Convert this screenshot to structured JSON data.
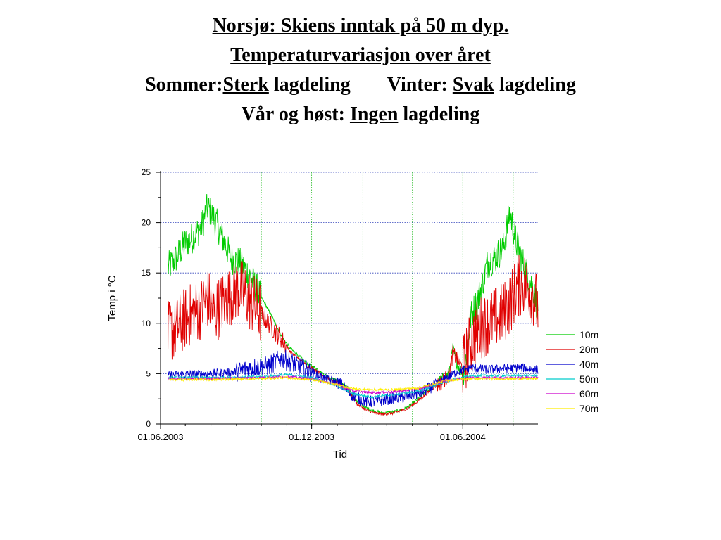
{
  "slide": {
    "line1": "Norsjø: Skiens inntak på 50 m dyp.",
    "line2": "Temperaturvariasjon over året",
    "line3_a": "Sommer:",
    "line3_b": "Sterk",
    "line3_c": " lagdeling",
    "line3_d": "Vinter: ",
    "line3_e": "Svak",
    "line3_f": " lagdeling",
    "line4_a": "Vår og høst: ",
    "line4_b": "Ingen",
    "line4_c": " lagdeling"
  },
  "chart_data": {
    "type": "line",
    "title": "",
    "xlabel": "Tid",
    "ylabel": "Temp i °C",
    "xlim": [
      "2003-06-01",
      "2004-08-31"
    ],
    "ylim": [
      0,
      25
    ],
    "yticks": [
      "0",
      "5",
      "10",
      "15",
      "20",
      "25"
    ],
    "xticks": [
      "01.06.2003",
      "01.12.2003",
      "01.06.2004"
    ],
    "grid": true,
    "legend_position": "right",
    "series": [
      {
        "name": "10m",
        "color": "#00cc00",
        "points": [
          [
            "2003-06-10",
            15.5
          ],
          [
            "2003-06-20",
            16.5
          ],
          [
            "2003-07-01",
            18.0
          ],
          [
            "2003-07-10",
            18.5
          ],
          [
            "2003-07-20",
            19.5
          ],
          [
            "2003-07-28",
            21.5
          ],
          [
            "2003-08-05",
            20.5
          ],
          [
            "2003-08-15",
            18.5
          ],
          [
            "2003-08-25",
            16.5
          ],
          [
            "2003-09-05",
            16.0
          ],
          [
            "2003-09-15",
            15.0
          ],
          [
            "2003-09-25",
            13.5
          ],
          [
            "2003-10-05",
            12.0
          ],
          [
            "2003-10-15",
            10.5
          ],
          [
            "2003-10-25",
            8.8
          ],
          [
            "2003-11-05",
            7.5
          ],
          [
            "2003-11-15",
            6.8
          ],
          [
            "2003-11-25",
            6.0
          ],
          [
            "2003-12-05",
            5.6
          ],
          [
            "2003-12-15",
            5.0
          ],
          [
            "2003-12-25",
            4.5
          ],
          [
            "2004-01-05",
            4.2
          ],
          [
            "2004-01-15",
            3.5
          ],
          [
            "2004-01-25",
            2.2
          ],
          [
            "2004-02-05",
            1.6
          ],
          [
            "2004-02-15",
            1.3
          ],
          [
            "2004-02-25",
            1.1
          ],
          [
            "2004-03-10",
            1.2
          ],
          [
            "2004-03-25",
            1.6
          ],
          [
            "2004-04-05",
            2.3
          ],
          [
            "2004-04-15",
            3.0
          ],
          [
            "2004-04-25",
            3.7
          ],
          [
            "2004-05-05",
            4.3
          ],
          [
            "2004-05-15",
            5.0
          ],
          [
            "2004-05-20",
            7.5
          ],
          [
            "2004-05-25",
            6.0
          ],
          [
            "2004-06-01",
            5.0
          ],
          [
            "2004-06-05",
            6.5
          ],
          [
            "2004-06-10",
            10.5
          ],
          [
            "2004-06-20",
            12.5
          ],
          [
            "2004-07-01",
            16.0
          ],
          [
            "2004-07-10",
            16.5
          ],
          [
            "2004-07-20",
            17.5
          ],
          [
            "2004-07-28",
            21.0
          ],
          [
            "2004-08-05",
            18.0
          ],
          [
            "2004-08-15",
            15.5
          ],
          [
            "2004-08-25",
            13.5
          ],
          [
            "2004-08-31",
            11.5
          ]
        ]
      },
      {
        "name": "20m",
        "color": "#e00000",
        "points": [
          [
            "2003-06-10",
            9.0
          ],
          [
            "2003-06-20",
            9.5
          ],
          [
            "2003-07-01",
            10.5
          ],
          [
            "2003-07-10",
            11.0
          ],
          [
            "2003-07-20",
            11.5
          ],
          [
            "2003-07-28",
            12.5
          ],
          [
            "2003-08-05",
            11.0
          ],
          [
            "2003-08-15",
            12.0
          ],
          [
            "2003-08-25",
            13.0
          ],
          [
            "2003-09-05",
            13.5
          ],
          [
            "2003-09-15",
            12.5
          ],
          [
            "2003-09-25",
            11.5
          ],
          [
            "2003-10-05",
            10.5
          ],
          [
            "2003-10-15",
            9.5
          ],
          [
            "2003-10-25",
            8.5
          ],
          [
            "2003-11-05",
            7.2
          ],
          [
            "2003-11-15",
            6.5
          ],
          [
            "2003-11-25",
            5.8
          ],
          [
            "2003-12-05",
            5.4
          ],
          [
            "2003-12-15",
            4.8
          ],
          [
            "2003-12-25",
            4.3
          ],
          [
            "2004-01-05",
            4.0
          ],
          [
            "2004-01-15",
            3.2
          ],
          [
            "2004-01-25",
            2.0
          ],
          [
            "2004-02-05",
            1.4
          ],
          [
            "2004-02-15",
            1.1
          ],
          [
            "2004-02-25",
            1.0
          ],
          [
            "2004-03-10",
            1.1
          ],
          [
            "2004-03-25",
            1.5
          ],
          [
            "2004-04-05",
            2.1
          ],
          [
            "2004-04-15",
            2.8
          ],
          [
            "2004-04-25",
            3.5
          ],
          [
            "2004-05-05",
            4.1
          ],
          [
            "2004-05-15",
            4.8
          ],
          [
            "2004-05-20",
            7.0
          ],
          [
            "2004-05-25",
            6.5
          ],
          [
            "2004-06-01",
            5.5
          ],
          [
            "2004-06-10",
            8.0
          ],
          [
            "2004-06-20",
            9.5
          ],
          [
            "2004-07-01",
            10.0
          ],
          [
            "2004-07-10",
            10.5
          ],
          [
            "2004-07-20",
            11.0
          ],
          [
            "2004-07-28",
            12.0
          ],
          [
            "2004-08-05",
            13.5
          ],
          [
            "2004-08-15",
            14.0
          ],
          [
            "2004-08-25",
            13.0
          ],
          [
            "2004-08-31",
            11.5
          ]
        ]
      },
      {
        "name": "40m",
        "color": "#0000cc",
        "points": [
          [
            "2003-06-10",
            4.8
          ],
          [
            "2003-07-01",
            4.9
          ],
          [
            "2003-08-01",
            5.0
          ],
          [
            "2003-09-01",
            5.2
          ],
          [
            "2003-09-20",
            5.6
          ],
          [
            "2003-10-10",
            5.8
          ],
          [
            "2003-10-25",
            6.5
          ],
          [
            "2003-11-05",
            6.2
          ],
          [
            "2003-11-20",
            5.5
          ],
          [
            "2003-12-05",
            5.0
          ],
          [
            "2003-12-20",
            4.4
          ],
          [
            "2004-01-05",
            4.0
          ],
          [
            "2004-01-20",
            2.8
          ],
          [
            "2004-02-05",
            2.2
          ],
          [
            "2004-02-20",
            2.3
          ],
          [
            "2004-03-10",
            2.6
          ],
          [
            "2004-03-25",
            2.7
          ],
          [
            "2004-04-10",
            3.1
          ],
          [
            "2004-04-25",
            3.7
          ],
          [
            "2004-05-10",
            4.4
          ],
          [
            "2004-05-25",
            5.2
          ],
          [
            "2004-06-10",
            5.6
          ],
          [
            "2004-07-01",
            5.4
          ],
          [
            "2004-07-20",
            5.5
          ],
          [
            "2004-08-10",
            5.6
          ],
          [
            "2004-08-31",
            5.4
          ]
        ]
      },
      {
        "name": "50m",
        "color": "#00cccc",
        "points": [
          [
            "2003-06-10",
            4.6
          ],
          [
            "2003-08-01",
            4.6
          ],
          [
            "2003-10-01",
            4.7
          ],
          [
            "2003-11-01",
            4.9
          ],
          [
            "2003-12-01",
            4.6
          ],
          [
            "2004-01-01",
            3.8
          ],
          [
            "2004-01-20",
            3.0
          ],
          [
            "2004-02-10",
            2.7
          ],
          [
            "2004-03-10",
            2.9
          ],
          [
            "2004-04-10",
            3.3
          ],
          [
            "2004-05-10",
            4.2
          ],
          [
            "2004-06-10",
            4.8
          ],
          [
            "2004-08-31",
            4.8
          ]
        ]
      },
      {
        "name": "60m",
        "color": "#cc00cc",
        "points": [
          [
            "2003-06-10",
            4.5
          ],
          [
            "2003-08-01",
            4.5
          ],
          [
            "2003-10-01",
            4.6
          ],
          [
            "2003-11-01",
            4.7
          ],
          [
            "2003-12-01",
            4.5
          ],
          [
            "2004-01-01",
            3.9
          ],
          [
            "2004-01-20",
            3.3
          ],
          [
            "2004-02-10",
            3.1
          ],
          [
            "2004-03-10",
            3.2
          ],
          [
            "2004-04-10",
            3.5
          ],
          [
            "2004-05-10",
            4.3
          ],
          [
            "2004-06-10",
            4.6
          ],
          [
            "2004-08-31",
            4.6
          ]
        ]
      },
      {
        "name": "70m",
        "color": "#ffee00",
        "points": [
          [
            "2003-06-10",
            4.4
          ],
          [
            "2003-08-01",
            4.4
          ],
          [
            "2003-10-01",
            4.5
          ],
          [
            "2003-11-01",
            4.6
          ],
          [
            "2003-12-01",
            4.4
          ],
          [
            "2004-01-01",
            3.9
          ],
          [
            "2004-01-20",
            3.5
          ],
          [
            "2004-02-10",
            3.4
          ],
          [
            "2004-03-10",
            3.4
          ],
          [
            "2004-04-10",
            3.6
          ],
          [
            "2004-05-10",
            4.3
          ],
          [
            "2004-06-10",
            4.5
          ],
          [
            "2004-08-31",
            4.5
          ]
        ]
      }
    ]
  }
}
